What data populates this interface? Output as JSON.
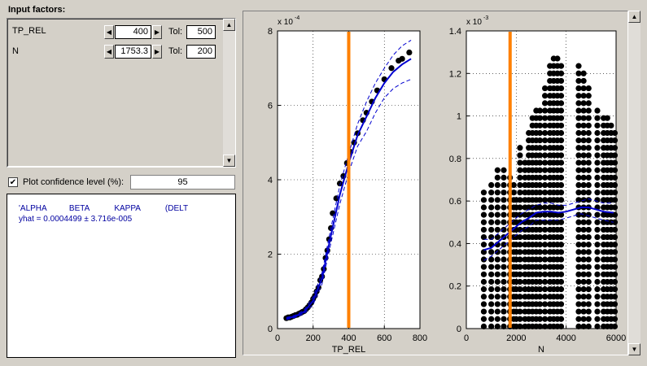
{
  "input_panel": {
    "title": "Input factors:",
    "factors": [
      {
        "name": "TP_REL",
        "value": "400",
        "tol_label": "Tol:",
        "tol": "500"
      },
      {
        "name": "N",
        "value": "1753.3",
        "tol_label": "Tol:",
        "tol": "200"
      }
    ]
  },
  "confidence": {
    "label": "Plot confidence level (%):",
    "value": "95",
    "checked": true
  },
  "stats": {
    "header": "'ALPHA          BETA           KAPPA           (DELT",
    "yhat": "yhat = 0.0004499 ± 3.716e-005"
  },
  "icons": {
    "left_arrow": "◀",
    "right_arrow": "▶",
    "up_arrow": "▲",
    "down_arrow": "▼",
    "check": "✔"
  },
  "colors": {
    "curve": "#0000d0",
    "marker": "#000000",
    "cursor": "#ff8000"
  },
  "chart_data": [
    {
      "type": "scatter",
      "xlabel": "TP_REL",
      "ylabel": "",
      "exponent_label": "x 10",
      "exponent": "-4",
      "xlim": [
        0,
        800
      ],
      "ylim": [
        0,
        8
      ],
      "xticks": [
        0,
        200,
        400,
        600,
        800
      ],
      "yticks": [
        0,
        2,
        4,
        6,
        8
      ],
      "cursor_x": 400,
      "grid": true,
      "points": [
        [
          50,
          0.28
        ],
        [
          60,
          0.3
        ],
        [
          70,
          0.3
        ],
        [
          80,
          0.32
        ],
        [
          90,
          0.34
        ],
        [
          100,
          0.36
        ],
        [
          110,
          0.37
        ],
        [
          120,
          0.4
        ],
        [
          130,
          0.42
        ],
        [
          140,
          0.45
        ],
        [
          150,
          0.47
        ],
        [
          160,
          0.52
        ],
        [
          170,
          0.57
        ],
        [
          180,
          0.63
        ],
        [
          190,
          0.7
        ],
        [
          200,
          0.8
        ],
        [
          210,
          0.88
        ],
        [
          220,
          1.0
        ],
        [
          230,
          1.1
        ],
        [
          240,
          1.3
        ],
        [
          250,
          1.4
        ],
        [
          260,
          1.6
        ],
        [
          270,
          1.9
        ],
        [
          280,
          2.1
        ],
        [
          290,
          2.4
        ],
        [
          300,
          2.7
        ],
        [
          310,
          3.1
        ],
        [
          330,
          3.5
        ],
        [
          350,
          3.9
        ],
        [
          370,
          4.1
        ],
        [
          390,
          4.45
        ],
        [
          410,
          4.75
        ],
        [
          430,
          5.0
        ],
        [
          450,
          5.25
        ],
        [
          480,
          5.6
        ],
        [
          500,
          5.8
        ],
        [
          530,
          6.1
        ],
        [
          560,
          6.4
        ],
        [
          600,
          6.7
        ],
        [
          640,
          7.0
        ],
        [
          680,
          7.2
        ],
        [
          700,
          7.25
        ],
        [
          740,
          7.42
        ]
      ],
      "fit": [
        [
          50,
          0.27
        ],
        [
          100,
          0.33
        ],
        [
          150,
          0.45
        ],
        [
          200,
          0.75
        ],
        [
          250,
          1.35
        ],
        [
          300,
          2.5
        ],
        [
          350,
          3.6
        ],
        [
          400,
          4.45
        ],
        [
          450,
          5.2
        ],
        [
          500,
          5.7
        ],
        [
          550,
          6.2
        ],
        [
          600,
          6.6
        ],
        [
          650,
          6.9
        ],
        [
          700,
          7.1
        ],
        [
          750,
          7.25
        ]
      ],
      "ci_upper": [
        [
          50,
          0.3
        ],
        [
          100,
          0.36
        ],
        [
          150,
          0.5
        ],
        [
          200,
          0.85
        ],
        [
          250,
          1.5
        ],
        [
          300,
          2.7
        ],
        [
          350,
          3.85
        ],
        [
          400,
          4.7
        ],
        [
          450,
          5.5
        ],
        [
          500,
          6.1
        ],
        [
          550,
          6.6
        ],
        [
          600,
          7.0
        ],
        [
          650,
          7.35
        ],
        [
          700,
          7.6
        ],
        [
          750,
          7.75
        ]
      ],
      "ci_lower": [
        [
          50,
          0.24
        ],
        [
          100,
          0.3
        ],
        [
          150,
          0.4
        ],
        [
          200,
          0.65
        ],
        [
          250,
          1.2
        ],
        [
          300,
          2.3
        ],
        [
          350,
          3.35
        ],
        [
          400,
          4.2
        ],
        [
          450,
          4.9
        ],
        [
          500,
          5.3
        ],
        [
          550,
          5.8
        ],
        [
          600,
          6.2
        ],
        [
          650,
          6.45
        ],
        [
          700,
          6.6
        ],
        [
          750,
          6.7
        ]
      ]
    },
    {
      "type": "scatter",
      "xlabel": "N",
      "ylabel": "",
      "exponent_label": "x 10",
      "exponent": "-3",
      "xlim": [
        0,
        6000
      ],
      "ylim": [
        0,
        1.4
      ],
      "xticks": [
        0,
        2000,
        4000,
        6000
      ],
      "yticks": [
        0,
        0.2,
        0.4,
        0.6,
        0.8,
        1,
        1.2,
        1.4
      ],
      "ytick_labels": [
        "0",
        "0.2",
        "0.4",
        "0.6",
        "0.8",
        "1",
        "1.2",
        "1.4"
      ],
      "cursor_x": 1753.3,
      "grid": true,
      "columns": [
        [
          700,
          0.65
        ],
        [
          1000,
          0.7
        ],
        [
          1250,
          0.75
        ],
        [
          1500,
          0.75
        ],
        [
          1750,
          0.73
        ],
        [
          1900,
          0.68
        ],
        [
          2000,
          0.62
        ],
        [
          2150,
          0.85
        ],
        [
          2350,
          0.8
        ],
        [
          2500,
          0.95
        ],
        [
          2650,
          1.0
        ],
        [
          2800,
          1.05
        ],
        [
          2950,
          1.05
        ],
        [
          3150,
          1.15
        ],
        [
          3350,
          1.25
        ],
        [
          3500,
          1.3
        ],
        [
          3650,
          1.3
        ],
        [
          3800,
          1.25
        ],
        [
          4500,
          1.25
        ],
        [
          4700,
          1.22
        ],
        [
          4900,
          1.15
        ],
        [
          5250,
          1.05
        ],
        [
          5500,
          1.02
        ],
        [
          5650,
          1.0
        ],
        [
          5800,
          0.98
        ],
        [
          5950,
          0.95
        ]
      ],
      "fit": [
        [
          700,
          0.37
        ],
        [
          1000,
          0.38
        ],
        [
          1300,
          0.41
        ],
        [
          1600,
          0.44
        ],
        [
          1900,
          0.47
        ],
        [
          2200,
          0.5
        ],
        [
          2500,
          0.52
        ],
        [
          2800,
          0.545
        ],
        [
          3100,
          0.55
        ],
        [
          3400,
          0.55
        ],
        [
          3700,
          0.545
        ],
        [
          4000,
          0.55
        ],
        [
          4300,
          0.56
        ],
        [
          4600,
          0.57
        ],
        [
          4900,
          0.57
        ],
        [
          5200,
          0.56
        ],
        [
          5500,
          0.55
        ],
        [
          5900,
          0.545
        ]
      ],
      "ci_upper": [
        [
          700,
          0.42
        ],
        [
          1000,
          0.42
        ],
        [
          1300,
          0.45
        ],
        [
          1600,
          0.48
        ],
        [
          1900,
          0.51
        ],
        [
          2200,
          0.54
        ],
        [
          2500,
          0.56
        ],
        [
          2800,
          0.58
        ],
        [
          3100,
          0.59
        ],
        [
          3400,
          0.59
        ],
        [
          3700,
          0.58
        ],
        [
          4000,
          0.58
        ],
        [
          4300,
          0.59
        ],
        [
          4600,
          0.6
        ],
        [
          4900,
          0.61
        ],
        [
          5200,
          0.6
        ],
        [
          5500,
          0.59
        ],
        [
          5900,
          0.59
        ]
      ],
      "ci_lower": [
        [
          700,
          0.32
        ],
        [
          1000,
          0.34
        ],
        [
          1300,
          0.37
        ],
        [
          1600,
          0.4
        ],
        [
          1900,
          0.43
        ],
        [
          2200,
          0.46
        ],
        [
          2500,
          0.48
        ],
        [
          2800,
          0.51
        ],
        [
          3100,
          0.51
        ],
        [
          3400,
          0.51
        ],
        [
          3700,
          0.51
        ],
        [
          4000,
          0.52
        ],
        [
          4300,
          0.53
        ],
        [
          4600,
          0.54
        ],
        [
          4900,
          0.53
        ],
        [
          5200,
          0.52
        ],
        [
          5500,
          0.51
        ],
        [
          5900,
          0.5
        ]
      ]
    }
  ]
}
